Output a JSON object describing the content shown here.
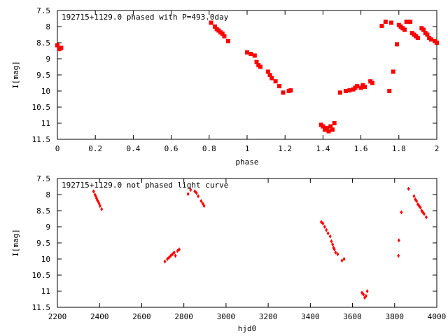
{
  "chart_data": [
    {
      "type": "scatter",
      "title": "192715+1129.0 phased with P=493.0day",
      "xlabel": "phase",
      "ylabel": "I[mag]",
      "xlim": [
        0,
        2
      ],
      "ylim": [
        11.5,
        7.5
      ],
      "y_inverted": true,
      "x_ticks": [
        "0",
        "0.2",
        "0.4",
        "0.6",
        "0.8",
        "1",
        "1.2",
        "1.4",
        "1.6",
        "1.8",
        "2"
      ],
      "y_ticks": [
        "7.5",
        "8",
        "8.5",
        "9",
        "9.5",
        "10",
        "10.5",
        "11",
        "11.5"
      ],
      "marker": "filled-square",
      "color": "#ff0000",
      "series": [
        {
          "x": [
            0.0,
            0.01,
            0.02,
            0.81,
            0.83,
            0.84,
            0.85,
            0.86,
            0.87,
            0.88,
            0.9,
            1.0,
            1.02,
            1.04,
            1.05,
            1.06,
            1.07,
            1.11,
            1.12,
            1.13,
            1.15,
            1.17,
            1.19,
            1.22,
            1.23,
            1.39,
            1.4,
            1.41,
            1.42,
            1.43,
            1.44,
            1.45,
            1.46,
            1.49,
            1.52,
            1.54,
            1.56,
            1.57,
            1.58,
            1.6,
            1.61,
            1.62,
            1.65,
            1.66,
            1.71,
            1.73,
            1.75,
            1.76,
            1.77,
            1.79,
            1.8,
            1.81,
            1.82,
            1.83,
            1.84,
            1.85,
            1.86,
            1.87,
            1.88,
            1.89,
            1.9,
            1.92,
            1.93,
            1.94,
            1.95,
            1.96,
            1.97,
            1.99,
            2.0
          ],
          "y": [
            8.58,
            8.7,
            8.66,
            7.88,
            8.0,
            8.08,
            8.12,
            8.18,
            8.22,
            8.3,
            8.45,
            8.8,
            8.85,
            8.9,
            9.1,
            9.2,
            9.25,
            9.4,
            9.5,
            9.6,
            9.7,
            9.85,
            10.05,
            10.0,
            9.98,
            11.05,
            11.1,
            11.2,
            11.15,
            11.25,
            11.1,
            11.2,
            11.0,
            10.05,
            10.0,
            9.98,
            9.95,
            9.9,
            9.85,
            9.9,
            9.82,
            9.87,
            9.7,
            9.75,
            7.98,
            7.85,
            10.0,
            7.88,
            9.4,
            8.55,
            7.95,
            8.0,
            8.05,
            8.1,
            7.85,
            7.85,
            7.85,
            8.2,
            8.25,
            8.3,
            8.35,
            8.05,
            8.1,
            8.2,
            8.25,
            8.35,
            8.4,
            8.45,
            8.5
          ]
        }
      ]
    },
    {
      "type": "scatter",
      "title": "192715+1129.0 not phased light curve",
      "xlabel": "hjd0",
      "ylabel": "I[mag]",
      "xlim": [
        2200,
        4000
      ],
      "ylim": [
        11.5,
        7.5
      ],
      "y_inverted": true,
      "x_ticks": [
        "2200",
        "2400",
        "2600",
        "2800",
        "3000",
        "3200",
        "3400",
        "3600",
        "3800",
        "4000"
      ],
      "y_ticks": [
        "7.5",
        "8",
        "8.5",
        "9",
        "9.5",
        "10",
        "10.5",
        "11",
        "11.5"
      ],
      "marker": "filled-diamond",
      "color": "#ff0000",
      "series": [
        {
          "x": [
            2372,
            2378,
            2382,
            2386,
            2390,
            2394,
            2398,
            2402,
            2410,
            2710,
            2722,
            2730,
            2738,
            2746,
            2754,
            2760,
            2770,
            2778,
            2820,
            2832,
            2852,
            2860,
            2868,
            2882,
            2890,
            2896,
            3452,
            3460,
            3468,
            3476,
            3484,
            3494,
            3500,
            3506,
            3510,
            3514,
            3520,
            3530,
            3550,
            3560,
            3645,
            3652,
            3658,
            3664,
            3670,
            3818,
            3820,
            3832,
            3866,
            3892,
            3898,
            3904,
            3910,
            3916,
            3922,
            3928,
            3934,
            3940,
            3950
          ],
          "y": [
            7.9,
            8.0,
            8.05,
            8.12,
            8.18,
            8.22,
            8.28,
            8.35,
            8.45,
            10.08,
            10.0,
            9.95,
            9.9,
            9.85,
            9.8,
            9.9,
            9.75,
            9.7,
            7.98,
            7.85,
            7.9,
            7.95,
            8.05,
            8.2,
            8.28,
            8.35,
            8.85,
            8.9,
            9.0,
            9.1,
            9.2,
            9.3,
            9.45,
            9.55,
            9.65,
            9.7,
            9.8,
            9.85,
            10.05,
            10.0,
            11.05,
            11.1,
            11.2,
            11.15,
            11.0,
            9.9,
            9.42,
            8.55,
            7.82,
            8.05,
            8.15,
            8.2,
            8.3,
            8.35,
            8.4,
            8.5,
            8.55,
            8.6,
            8.7
          ]
        }
      ]
    }
  ]
}
